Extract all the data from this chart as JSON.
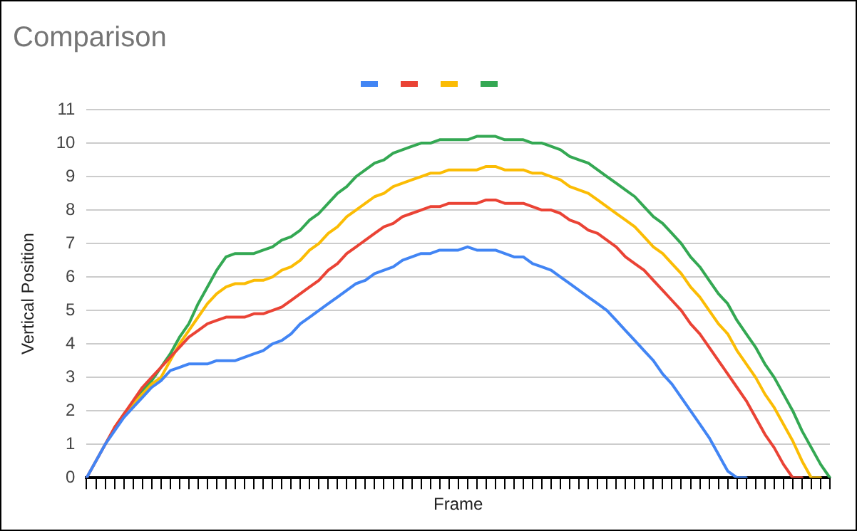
{
  "chart_data": {
    "type": "line",
    "title": "Comparison",
    "xlabel": "Frame",
    "ylabel": "Vertical Position",
    "categories": [
      null,
      null,
      null,
      null,
      null,
      null,
      null,
      null,
      null,
      null,
      null,
      null,
      null,
      null,
      null,
      null,
      null,
      null,
      null,
      null,
      null,
      null,
      null,
      null,
      null,
      null,
      null,
      null,
      null,
      null,
      null,
      null,
      null,
      null,
      null,
      null,
      null,
      null,
      null,
      null,
      null,
      null,
      null,
      null,
      null,
      null,
      null,
      null,
      null,
      null,
      null,
      null,
      null,
      null,
      null,
      null,
      null,
      null,
      null,
      null,
      null,
      null,
      null,
      null,
      null,
      null,
      null,
      null,
      null,
      null,
      null,
      null,
      null,
      null,
      null,
      null,
      null,
      null,
      null,
      null,
      null
    ],
    "series": [
      {
        "color": "#4285f4",
        "values": [
          0,
          0.5,
          1,
          1.4,
          1.8,
          2.1,
          2.4,
          2.7,
          2.9,
          3.2,
          3.3,
          3.4,
          3.4,
          3.4,
          3.5,
          3.5,
          3.5,
          3.6,
          3.7,
          3.8,
          4,
          4.1,
          4.3,
          4.6,
          4.8,
          5,
          5.2,
          5.4,
          5.6,
          5.8,
          5.9,
          6.1,
          6.2,
          6.3,
          6.5,
          6.6,
          6.7,
          6.7,
          6.8,
          6.8,
          6.8,
          6.9,
          6.8,
          6.8,
          6.8,
          6.7,
          6.6,
          6.6,
          6.4,
          6.3,
          6.2,
          6,
          5.8,
          5.6,
          5.4,
          5.2,
          5,
          4.7,
          4.4,
          4.1,
          3.8,
          3.5,
          3.1,
          2.8,
          2.4,
          2,
          1.6,
          1.2,
          0.7,
          0.2,
          0,
          0,
          null,
          null,
          null,
          null,
          null,
          null,
          null,
          null,
          null
        ]
      },
      {
        "color": "#ea4335",
        "values": [
          0,
          0.5,
          1,
          1.5,
          1.9,
          2.3,
          2.7,
          3,
          3.3,
          3.6,
          3.9,
          4.2,
          4.4,
          4.6,
          4.7,
          4.8,
          4.8,
          4.8,
          4.9,
          4.9,
          5,
          5.1,
          5.3,
          5.5,
          5.7,
          5.9,
          6.2,
          6.4,
          6.7,
          6.9,
          7.1,
          7.3,
          7.5,
          7.6,
          7.8,
          7.9,
          8,
          8.1,
          8.1,
          8.2,
          8.2,
          8.2,
          8.2,
          8.3,
          8.3,
          8.2,
          8.2,
          8.2,
          8.1,
          8,
          8,
          7.9,
          7.7,
          7.6,
          7.4,
          7.3,
          7.1,
          6.9,
          6.6,
          6.4,
          6.2,
          5.9,
          5.6,
          5.3,
          5,
          4.6,
          4.3,
          3.9,
          3.5,
          3.1,
          2.7,
          2.3,
          1.8,
          1.3,
          0.9,
          0.4,
          0,
          0,
          null,
          null,
          null
        ]
      },
      {
        "color": "#fbbc04",
        "values": [
          null,
          null,
          null,
          1.5,
          1.9,
          2.2,
          2.5,
          2.8,
          3,
          3.5,
          4,
          4.4,
          4.8,
          5.2,
          5.5,
          5.7,
          5.8,
          5.8,
          5.9,
          5.9,
          6,
          6.2,
          6.3,
          6.5,
          6.8,
          7,
          7.3,
          7.5,
          7.8,
          8,
          8.2,
          8.4,
          8.5,
          8.7,
          8.8,
          8.9,
          9,
          9.1,
          9.1,
          9.2,
          9.2,
          9.2,
          9.2,
          9.3,
          9.3,
          9.2,
          9.2,
          9.2,
          9.1,
          9.1,
          9,
          8.9,
          8.7,
          8.6,
          8.5,
          8.3,
          8.1,
          7.9,
          7.7,
          7.5,
          7.2,
          6.9,
          6.7,
          6.4,
          6.1,
          5.7,
          5.4,
          5,
          4.6,
          4.3,
          3.8,
          3.4,
          3,
          2.5,
          2.1,
          1.6,
          1.1,
          0.5,
          0,
          0,
          null
        ]
      },
      {
        "color": "#34a853",
        "values": [
          null,
          null,
          null,
          null,
          1.9,
          2.2,
          2.6,
          2.9,
          3.3,
          3.7,
          4.2,
          4.6,
          5.2,
          5.7,
          6.2,
          6.6,
          6.7,
          6.7,
          6.7,
          6.8,
          6.9,
          7.1,
          7.2,
          7.4,
          7.7,
          7.9,
          8.2,
          8.5,
          8.7,
          9,
          9.2,
          9.4,
          9.5,
          9.7,
          9.8,
          9.9,
          10,
          10,
          10.1,
          10.1,
          10.1,
          10.1,
          10.2,
          10.2,
          10.2,
          10.1,
          10.1,
          10.1,
          10,
          10,
          9.9,
          9.8,
          9.6,
          9.5,
          9.4,
          9.2,
          9,
          8.8,
          8.6,
          8.4,
          8.1,
          7.8,
          7.6,
          7.3,
          7,
          6.6,
          6.3,
          5.9,
          5.5,
          5.2,
          4.7,
          4.3,
          3.9,
          3.4,
          3,
          2.5,
          2,
          1.4,
          0.9,
          0.4,
          0
        ]
      }
    ],
    "ylim": [
      0,
      11
    ],
    "yticks": [
      0,
      1,
      2,
      3,
      4,
      5,
      6,
      7,
      8,
      9,
      10,
      11
    ],
    "grid": "y",
    "marker": "none",
    "line_style": "solid",
    "tick_labels": "y"
  }
}
